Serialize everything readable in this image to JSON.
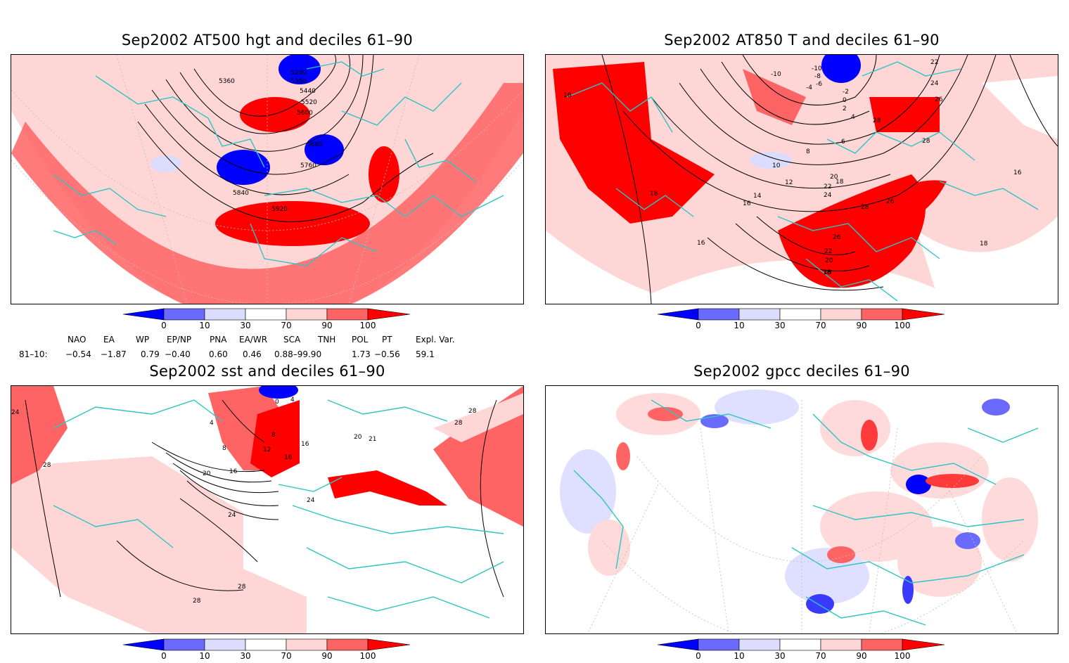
{
  "panels": [
    {
      "title": "Sep2002 AT500 hgt and deciles 61–90",
      "contour_labels": [
        "5280",
        "5360",
        "5360",
        "5440",
        "5520",
        "5600",
        "5680",
        "5760",
        "5840",
        "5920"
      ]
    },
    {
      "title": "Sep2002 AT850 T and deciles 61–90",
      "contour_labels": [
        "-10",
        "-10",
        "-8",
        "-6",
        "-4",
        "-2",
        "0",
        "2",
        "4",
        "6",
        "8",
        "10",
        "12",
        "14",
        "16",
        "16",
        "16",
        "16",
        "18",
        "18",
        "18",
        "18",
        "20",
        "20",
        "22",
        "22",
        "22",
        "24",
        "24",
        "26",
        "26",
        "26",
        "28",
        "28",
        "28",
        "18"
      ]
    },
    {
      "title": "Sep2002 sst and deciles 61–90",
      "contour_labels": [
        "24",
        "28",
        "0",
        "4",
        "4",
        "8",
        "8",
        "12",
        "16",
        "16",
        "16",
        "20",
        "20",
        "24",
        "24",
        "28",
        "28",
        "28",
        "28",
        "21"
      ]
    },
    {
      "title": "Sep2002 gpcc deciles 61–90",
      "contour_labels": []
    }
  ],
  "colorbar": {
    "ticks": [
      "0",
      "10",
      "30",
      "70",
      "90",
      "100"
    ],
    "colors": [
      "#0000ff",
      "#6a6aff",
      "#dcdcff",
      "#ffffff",
      "#ffd6d6",
      "#ff6464",
      "#ff0000"
    ]
  },
  "indices": {
    "header": [
      "NAO",
      "EA",
      "WP",
      "EP/NP",
      "PNA",
      "EA/WR",
      "SCA",
      "TNH",
      "POL",
      "PT",
      "Expl. Var."
    ],
    "row_label": "81–10:",
    "values": [
      "−0.54",
      "−1.87",
      "0.79",
      "−0.40",
      "0.60",
      "0.46",
      "0.88–99.90",
      "",
      "1.73",
      "−0.56",
      "59.1"
    ]
  }
}
